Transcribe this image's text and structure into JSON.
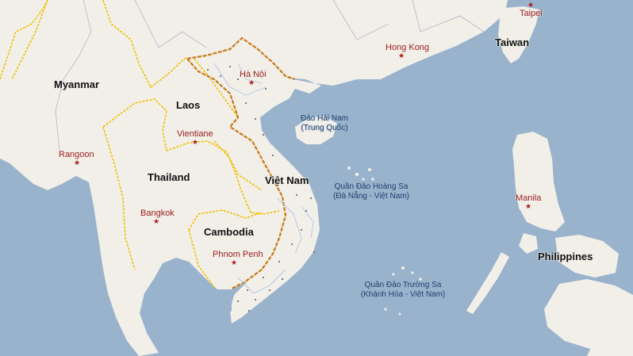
{
  "colors": {
    "water": "#99b3cc",
    "land": "#f2efe9",
    "border_intl": "#f0c000",
    "border_vietnam": "#c87a18",
    "province": "#b9b2c8",
    "river": "#aac6e6",
    "country_label": "#111111",
    "city_label": "#9b1c1c",
    "sea_label": "#1d3f6e"
  },
  "countries": {
    "myanmar": "Myanmar",
    "laos": "Laos",
    "thailand": "Thailand",
    "vietnam": "Việt Nam",
    "cambodia": "Cambodia",
    "taiwan": "Taiwan",
    "philippines": "Philippines"
  },
  "cities": {
    "hanoi": "Hà Nội",
    "vientiane": "Vientiane",
    "rangoon": "Rangoon",
    "bangkok": "Bangkok",
    "phnom_penh": "Phnom Penh",
    "hong_kong": "Hong Kong",
    "taipei": "Taipei",
    "manila": "Manila"
  },
  "islands": {
    "hainan_line1": "Đảo Hải Nam",
    "hainan_line2": "(Trung Quốc)",
    "paracel_line1": "Quần Đảo Hoàng Sa",
    "paracel_line2": "(Đà Nẵng - Việt Nam)",
    "spratly_line1": "Quần Đảo Trường Sa",
    "spratly_line2": "(Khánh Hòa - Việt Nam)"
  },
  "icons": {
    "capital_marker": "star-icon"
  }
}
